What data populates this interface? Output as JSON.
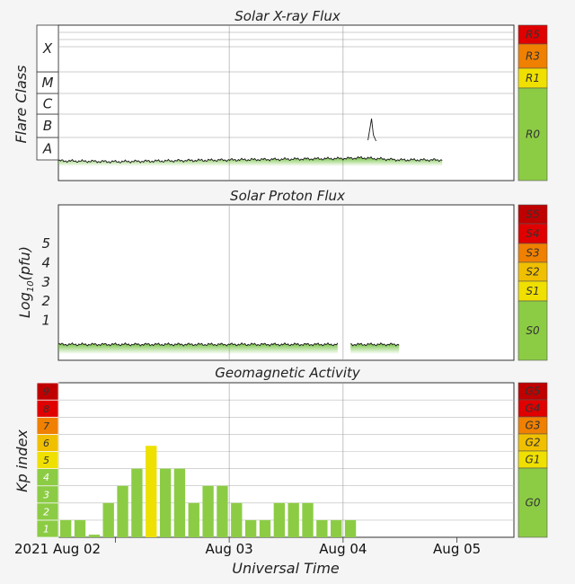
{
  "chart_data": [
    {
      "type": "area",
      "title": "Solar X-ray Flux",
      "ylabel": "Flare Class",
      "y_scale": "log",
      "classes": [
        "A",
        "B",
        "C",
        "M",
        "X"
      ],
      "x": [
        "2021-08-01T12:00",
        "2021-08-02T00:00",
        "2021-08-02T12:00",
        "2021-08-03T00:00",
        "2021-08-03T12:00",
        "2021-08-04T00:00",
        "2021-08-04T04:00",
        "2021-08-04T06:00",
        "2021-08-04T12:00",
        "2021-08-04T21:00"
      ],
      "values": [
        9e-09,
        8e-09,
        9e-09,
        1e-08,
        1.1e-08,
        1.2e-08,
        1.3e-08,
        5e-08,
        1e-08,
        1e-08
      ],
      "levels": [
        {
          "label": "R5",
          "color": "#e00000"
        },
        {
          "label": "R3",
          "color": "#f08000"
        },
        {
          "label": "R1",
          "color": "#f0e000"
        },
        {
          "label": "R0",
          "color": "#8ccc44"
        }
      ]
    },
    {
      "type": "area",
      "title": "Solar Proton Flux",
      "ylabel": "Log10(pfu)",
      "ylabel_main": "Log",
      "ylabel_sub": "10",
      "ylabel_tail": "(pfu)",
      "ylim": [
        -0.5,
        6
      ],
      "yticks": [
        "1",
        "2",
        "3",
        "4",
        "5"
      ],
      "x": [
        "2021-08-01T12:00",
        "2021-08-04T12:00"
      ],
      "values": [
        -0.25,
        -0.25
      ],
      "gap": [
        "2021-08-03T23:00",
        "2021-08-04T01:30"
      ],
      "levels": [
        {
          "label": "S5",
          "color": "#c00000"
        },
        {
          "label": "S4",
          "color": "#e00000"
        },
        {
          "label": "S3",
          "color": "#f08000"
        },
        {
          "label": "S2",
          "color": "#f0c000"
        },
        {
          "label": "S1",
          "color": "#f0e000"
        },
        {
          "label": "S0",
          "color": "#8ccc44"
        }
      ]
    },
    {
      "type": "bar",
      "title": "Geomagnetic Activity",
      "ylabel": "Kp index",
      "xlabel": "Universal Time",
      "ylim": [
        0,
        9
      ],
      "interval_hours": 3,
      "start": "2021-08-01T12:00",
      "values": [
        1,
        1,
        0.15,
        2,
        3,
        4,
        5.33,
        4,
        4,
        2,
        3,
        3,
        2,
        1,
        1,
        2,
        2,
        2,
        1,
        1,
        1
      ],
      "highlight_color": "#eee000",
      "bar_color": "#8ccc44",
      "kp_scale": [
        {
          "label": "1",
          "color": "#8ccc44"
        },
        {
          "label": "2",
          "color": "#8ccc44"
        },
        {
          "label": "3",
          "color": "#8ccc44"
        },
        {
          "label": "4",
          "color": "#8ccc44"
        },
        {
          "label": "5",
          "color": "#f0e000"
        },
        {
          "label": "6",
          "color": "#f0c000"
        },
        {
          "label": "7",
          "color": "#f08000"
        },
        {
          "label": "8",
          "color": "#e00000"
        },
        {
          "label": "9",
          "color": "#c00000"
        }
      ],
      "levels": [
        {
          "label": "G5",
          "color": "#c00000"
        },
        {
          "label": "G4",
          "color": "#e00000"
        },
        {
          "label": "G3",
          "color": "#f08000"
        },
        {
          "label": "G2",
          "color": "#f0c000"
        },
        {
          "label": "G1",
          "color": "#f0e000"
        },
        {
          "label": "G0",
          "color": "#8ccc44"
        }
      ],
      "xticks": [
        "2021 Aug 02",
        "Aug 03",
        "Aug 04",
        "Aug 05"
      ]
    }
  ]
}
